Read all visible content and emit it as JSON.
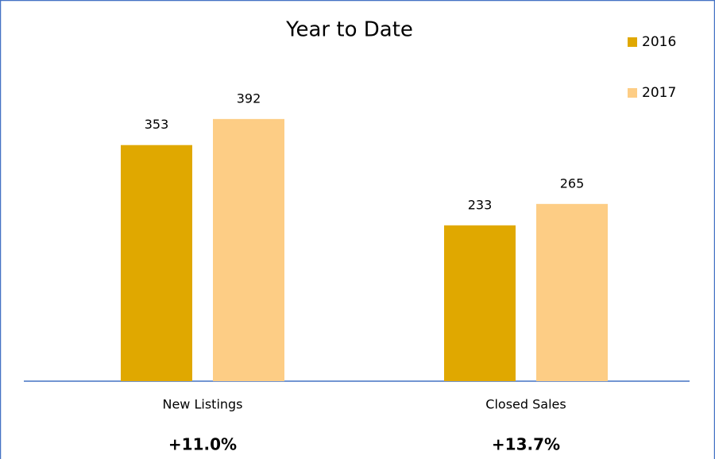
{
  "chart_data": {
    "type": "bar",
    "title": "Year to Date",
    "categories": [
      "New Listings",
      "Closed Sales"
    ],
    "series": [
      {
        "name": "2016",
        "color": "#e0a800",
        "values": [
          353,
          233
        ]
      },
      {
        "name": "2017",
        "color": "#fdcd85",
        "values": [
          392,
          265
        ]
      }
    ],
    "annotations": [
      "+11.0%",
      "+13.7%"
    ],
    "ylim": [
      0,
      450
    ],
    "legend": "top-right"
  }
}
